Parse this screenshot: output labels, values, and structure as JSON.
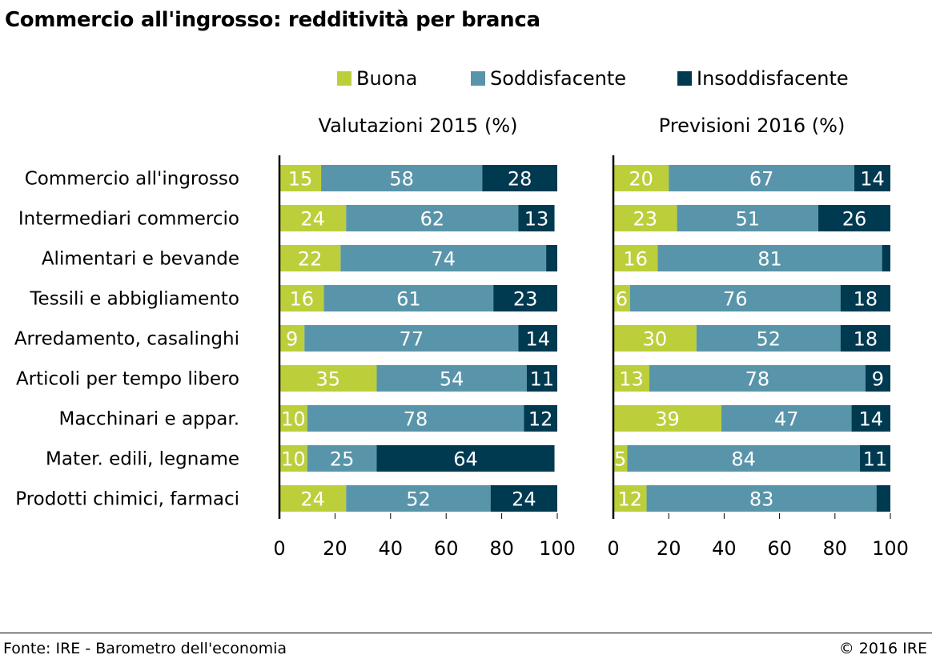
{
  "title": "Commercio all'ingrosso: redditività per branca",
  "legend": [
    {
      "label": "Buona",
      "color": "#bccf3b"
    },
    {
      "label": "Soddisfacente",
      "color": "#5995aa"
    },
    {
      "label": "Insoddisfacente",
      "color": "#003a51"
    }
  ],
  "footer": {
    "source": "Fonte: IRE - Barometro dell'economia",
    "copyright": "© 2016 IRE"
  },
  "chart_data": {
    "type": "bar",
    "orientation": "horizontal",
    "stacked": true,
    "categories": [
      "Commercio all'ingrosso",
      "Intermediari commercio",
      "Alimentari e bevande",
      "Tessili e abbigliamento",
      "Arredamento, casalinghi",
      "Articoli per tempo libero",
      "Macchinari e appar.",
      "Mater. edili, legname",
      "Prodotti chimici, farmaci"
    ],
    "xlim": [
      0,
      100
    ],
    "xticks": [
      0,
      20,
      40,
      60,
      80,
      100
    ],
    "grid": false,
    "legend_position": "top",
    "panels": [
      {
        "title": "Valutazioni 2015 (%)",
        "series": [
          {
            "name": "Buona",
            "color": "#bccf3b",
            "values": [
              15,
              24,
              22,
              16,
              9,
              35,
              10,
              10,
              24
            ]
          },
          {
            "name": "Soddisfacente",
            "color": "#5995aa",
            "values": [
              58,
              62,
              74,
              61,
              77,
              54,
              78,
              25,
              52
            ]
          },
          {
            "name": "Insoddisfacente",
            "color": "#003a51",
            "values": [
              28,
              13,
              4,
              23,
              14,
              11,
              12,
              64,
              24
            ]
          }
        ],
        "labels": [
          [
            "15",
            "58",
            "28"
          ],
          [
            "24",
            "62",
            "13"
          ],
          [
            "22",
            "74",
            ""
          ],
          [
            "16",
            "61",
            "23"
          ],
          [
            "9",
            "77",
            "14"
          ],
          [
            "35",
            "54",
            "11"
          ],
          [
            "10",
            "78",
            "12"
          ],
          [
            "10",
            "25",
            "64"
          ],
          [
            "24",
            "52",
            "24"
          ]
        ]
      },
      {
        "title": "Previsioni 2016 (%)",
        "series": [
          {
            "name": "Buona",
            "color": "#bccf3b",
            "values": [
              20,
              23,
              16,
              6,
              30,
              13,
              39,
              5,
              12
            ]
          },
          {
            "name": "Soddisfacente",
            "color": "#5995aa",
            "values": [
              67,
              51,
              81,
              76,
              52,
              78,
              47,
              84,
              83
            ]
          },
          {
            "name": "Insoddisfacente",
            "color": "#003a51",
            "values": [
              14,
              26,
              3,
              18,
              18,
              9,
              14,
              11,
              5
            ]
          }
        ],
        "labels": [
          [
            "20",
            "67",
            "14"
          ],
          [
            "23",
            "51",
            "26"
          ],
          [
            "16",
            "81",
            ""
          ],
          [
            "6",
            "76",
            "18"
          ],
          [
            "30",
            "52",
            "18"
          ],
          [
            "13",
            "78",
            "9"
          ],
          [
            "39",
            "47",
            "14"
          ],
          [
            "5",
            "84",
            "11"
          ],
          [
            "12",
            "83",
            ""
          ]
        ]
      }
    ]
  }
}
